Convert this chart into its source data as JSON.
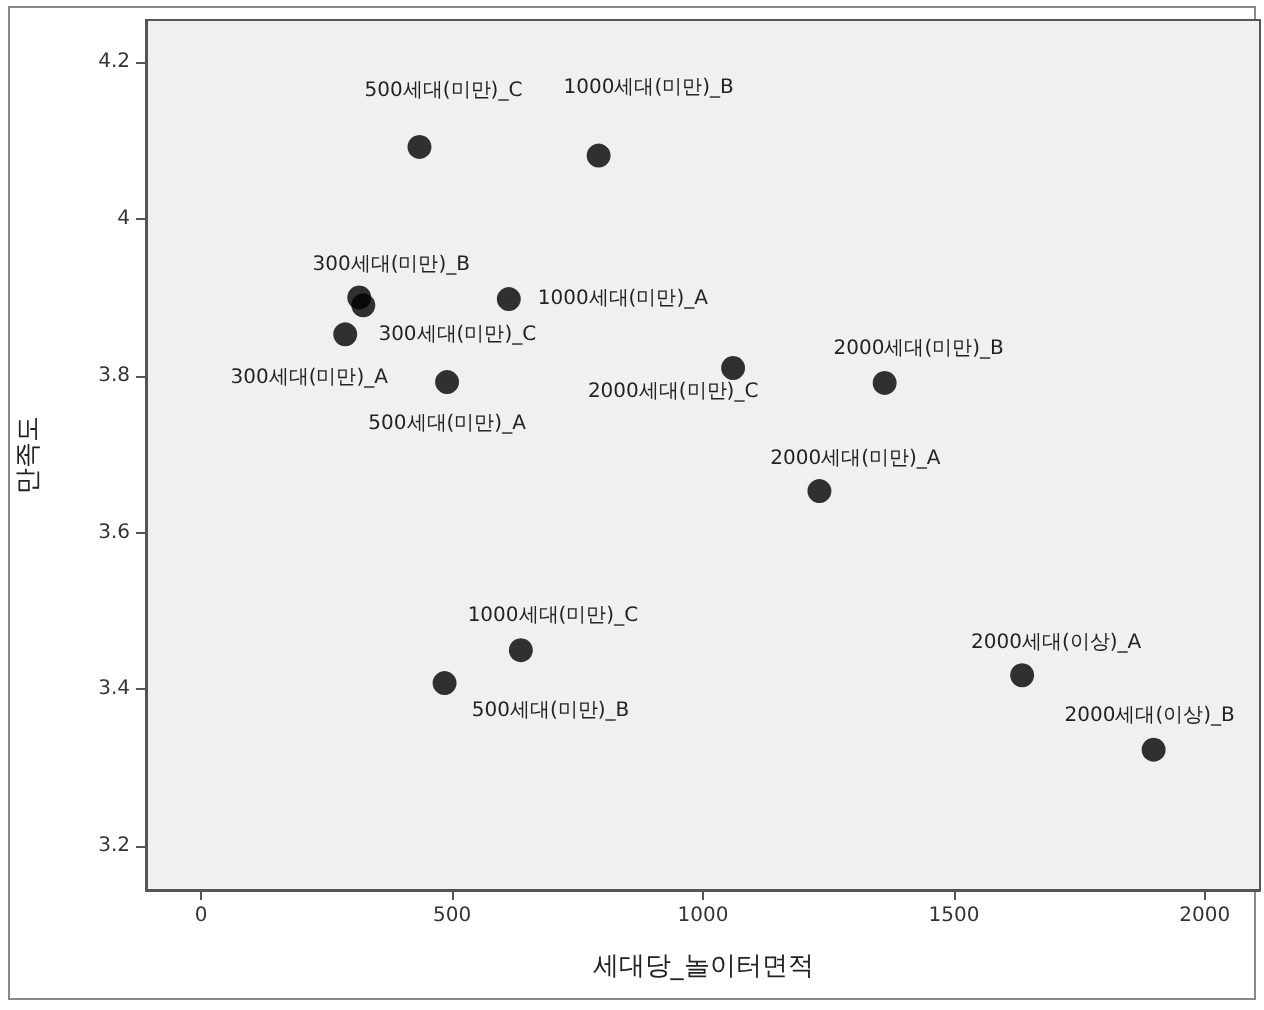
{
  "chart_data": {
    "type": "scatter",
    "xlabel": "세대당_놀이터면적",
    "ylabel": "만족도",
    "x": [
      435,
      792,
      315,
      323,
      613,
      287,
      490,
      1060,
      1362,
      1232,
      637,
      485,
      1636,
      1898
    ],
    "values": [
      4.092,
      4.081,
      3.9,
      3.89,
      3.898,
      3.853,
      3.792,
      3.81,
      3.791,
      3.653,
      3.45,
      3.408,
      3.418,
      3.323
    ],
    "color": "#000000",
    "marker": "circle",
    "grid": false,
    "xlim": [
      -110,
      2110
    ],
    "xticks": [
      0,
      500,
      1000,
      1500,
      2000
    ],
    "ylim": [
      3.144,
      4.254
    ],
    "yticks": [
      3.2,
      3.4,
      3.6,
      3.8,
      4,
      4.2
    ],
    "annotations": [
      {
        "text": "500세대(미만)_C",
        "x": 435,
        "y": 4.092
      },
      {
        "text": "1000세대(미만)_B",
        "x": 792,
        "y": 4.081
      },
      {
        "text": "300세대(미만)_B",
        "x": 315,
        "y": 3.9
      },
      {
        "text": "300세대(미만)_C",
        "x": 323,
        "y": 3.89
      },
      {
        "text": "1000세대(미만)_A",
        "x": 613,
        "y": 3.898
      },
      {
        "text": "300세대(미만)_A",
        "x": 287,
        "y": 3.853
      },
      {
        "text": "500세대(미만)_A",
        "x": 490,
        "y": 3.792
      },
      {
        "text": "2000세대(미만)_C",
        "x": 1060,
        "y": 3.81
      },
      {
        "text": "2000세대(미만)_B",
        "x": 1362,
        "y": 3.791
      },
      {
        "text": "2000세대(미만)_A",
        "x": 1232,
        "y": 3.653
      },
      {
        "text": "1000세대(미만)_C",
        "x": 637,
        "y": 3.45
      },
      {
        "text": "500세대(미만)_B",
        "x": 485,
        "y": 3.408
      },
      {
        "text": "2000세대(이상)_A",
        "x": 1636,
        "y": 3.418
      },
      {
        "text": "2000세대(이상)_B",
        "x": 1898,
        "y": 3.323
      }
    ]
  }
}
